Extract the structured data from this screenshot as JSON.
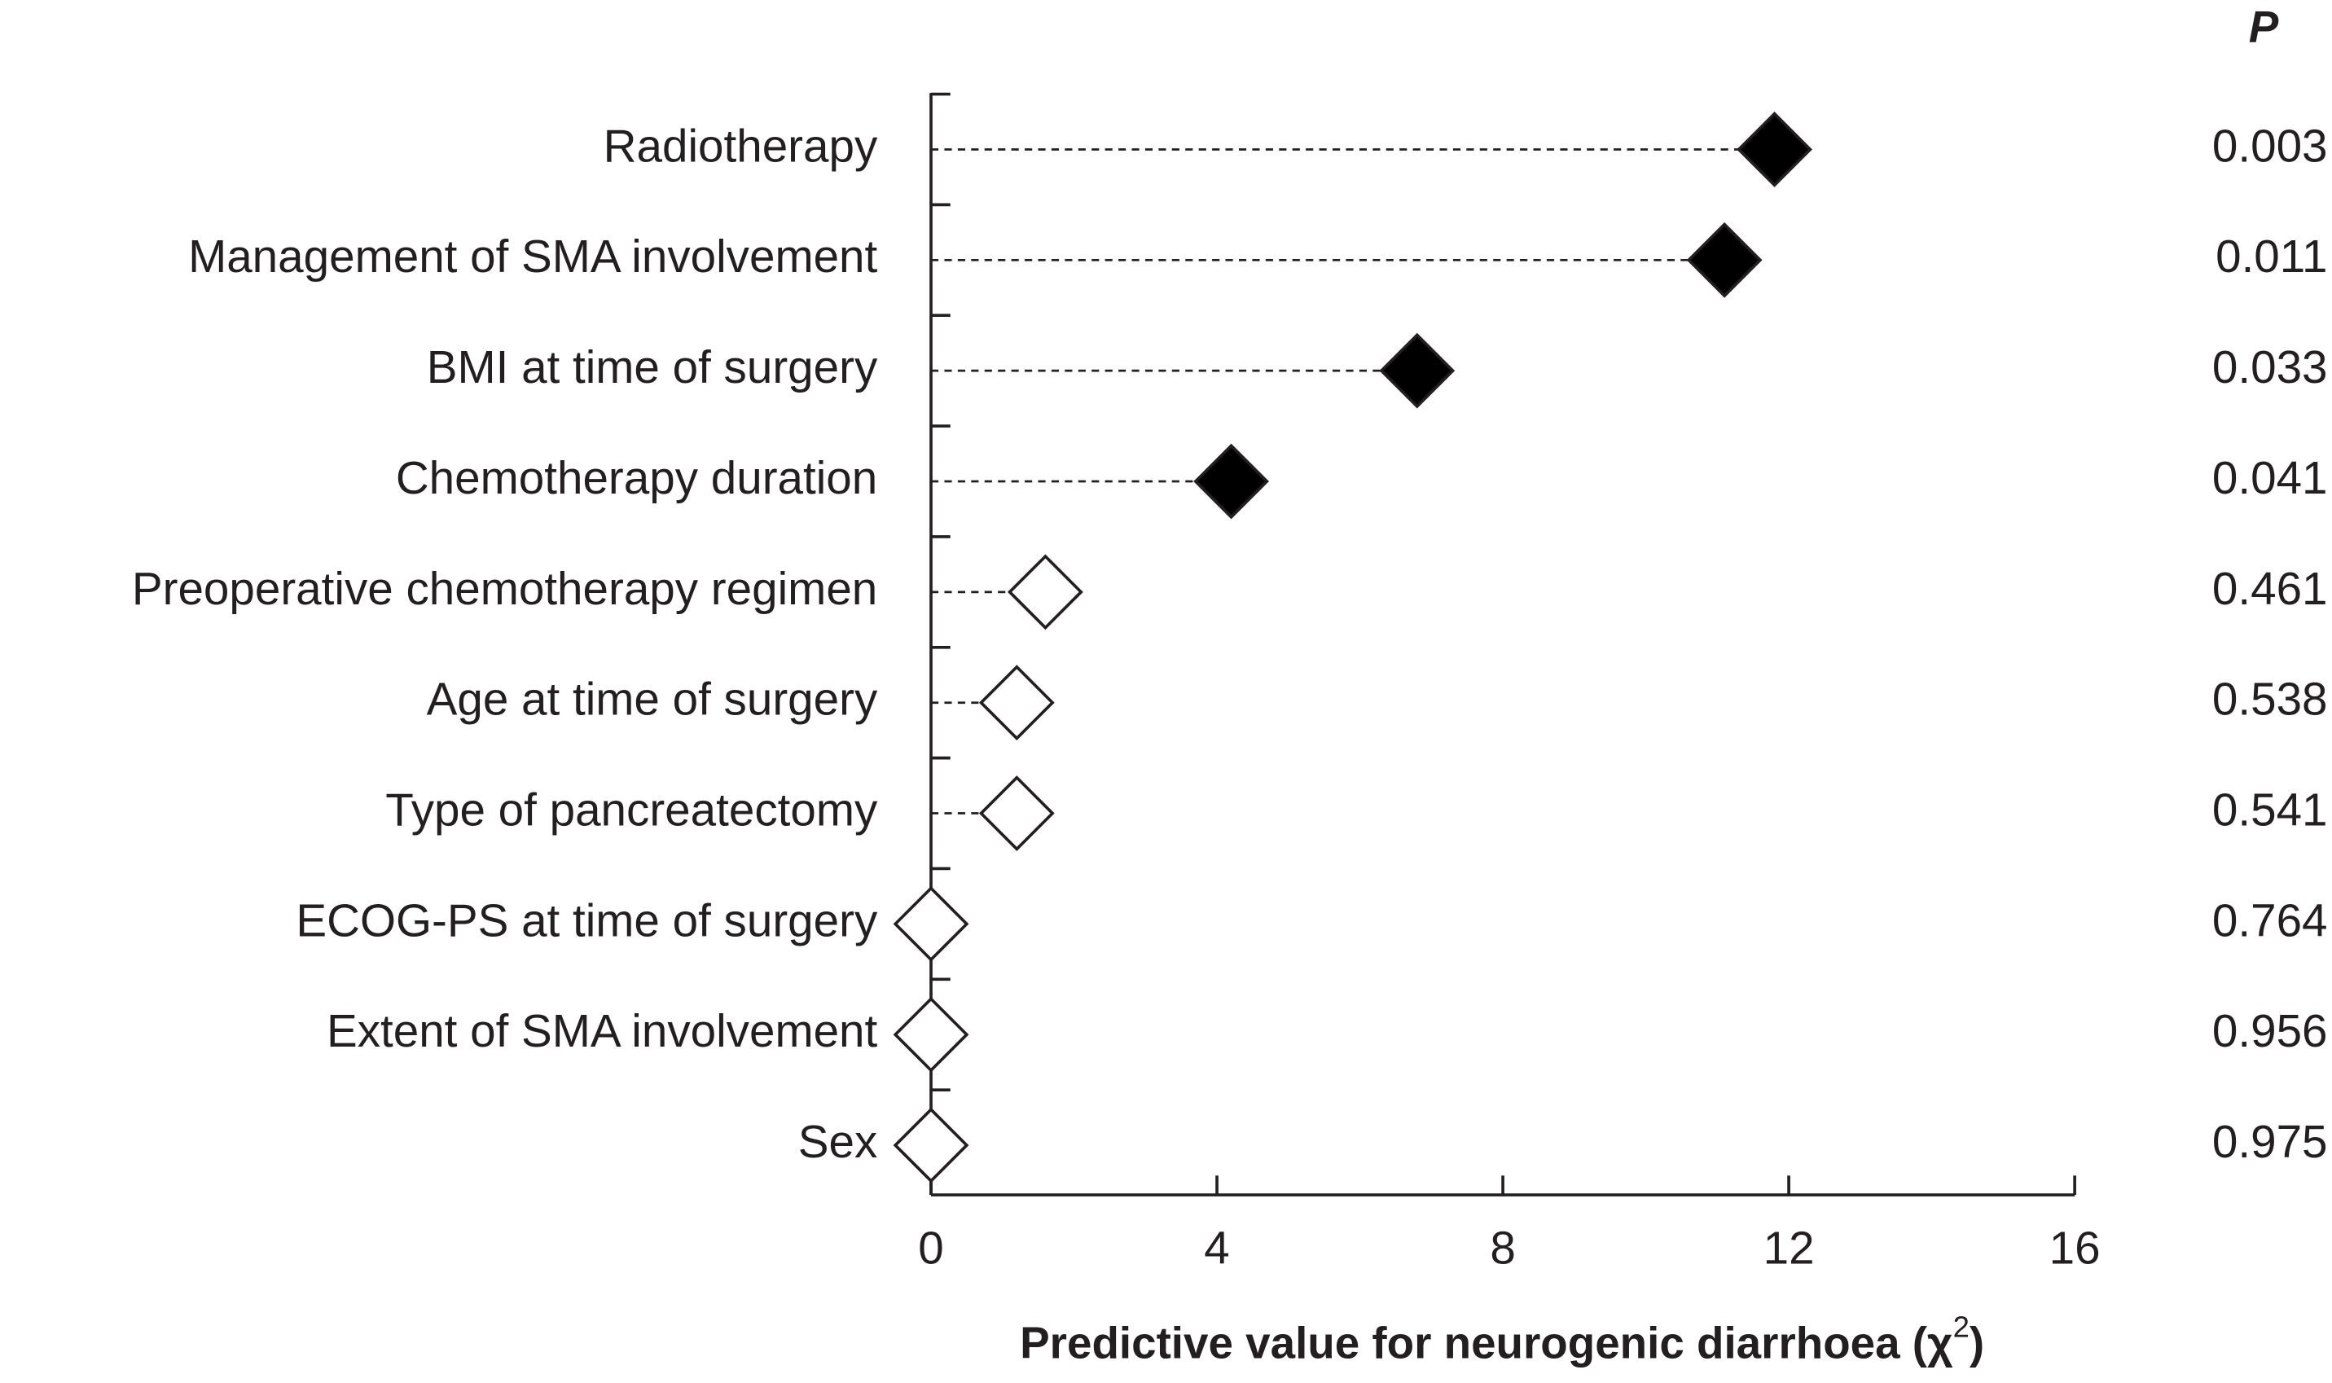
{
  "chart_data": {
    "type": "dot",
    "orientation": "horizontal",
    "categories": [
      "Radiotherapy",
      "Management of SMA involvement",
      "BMI at time of surgery",
      "Chemotherapy duration",
      "Preoperative chemotherapy regimen",
      "Age at time of surgery",
      "Type of pancreatectomy",
      "ECOG-PS at time of surgery",
      "Extent of SMA involvement",
      "Sex"
    ],
    "values": [
      11.8,
      11.1,
      6.8,
      4.2,
      1.6,
      1.2,
      1.2,
      0,
      0,
      0
    ],
    "marker_fills": [
      "#000000",
      "#000000",
      "#000000",
      "#000000",
      "#ffffff",
      "#ffffff",
      "#ffffff",
      "#ffffff",
      "#ffffff",
      "#ffffff"
    ],
    "p_header": "P",
    "p_values": [
      "0.003",
      "0.011",
      "0.033",
      "0.041",
      "0.461",
      "0.538",
      "0.541",
      "0.764",
      "0.956",
      "0.975"
    ],
    "x_label_parts": [
      "Predictive value for neurogenic diarrhoea (χ",
      "2",
      ")"
    ],
    "xlim": [
      0,
      16
    ],
    "xticks": [
      0,
      4,
      8,
      12,
      16
    ]
  }
}
